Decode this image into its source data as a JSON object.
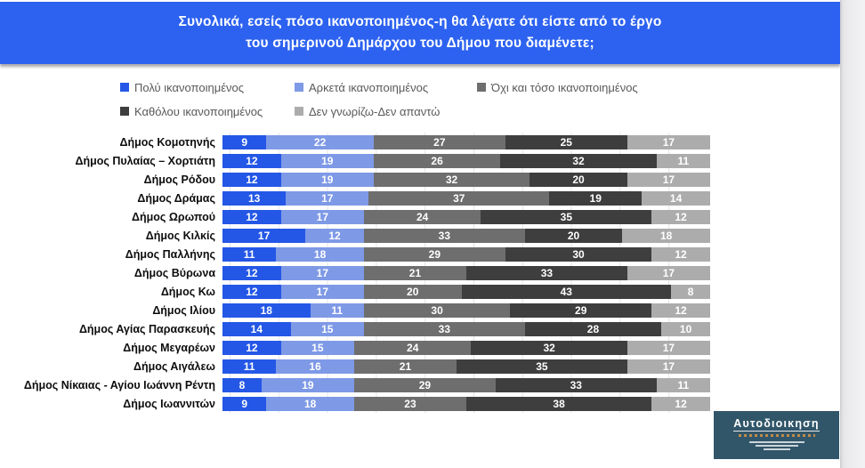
{
  "title": {
    "line1": "Συνολικά, εσείς πόσο ικανοποιημένος-η θα λέγατε ότι είστε από το έργο",
    "line2": "του σημερινού Δημάρχου του Δήμου που διαμένετε;"
  },
  "colors": {
    "banner_blue": "#2d62f0",
    "series": [
      "#2457e6",
      "#7e99e6",
      "#6e6e6e",
      "#3e3e3e",
      "#acacac"
    ],
    "logo_bg": "#31566a"
  },
  "chart_data": {
    "type": "bar",
    "stacked": true,
    "orientation": "horizontal",
    "xlim": [
      0,
      100
    ],
    "grid": "faint vertical lines every 10",
    "legend_position": "top",
    "categories": [
      "Δήμος Κομοτηνής",
      "Δήμος Πυλαίας – Χορτιάτη",
      "Δήμος Ρόδου",
      "Δήμος Δράμας",
      "Δήμος Ωρωπού",
      "Δήμος Κιλκίς",
      "Δήμος Παλλήνης",
      "Δήμος Βύρωνα",
      "Δήμος Κω",
      "Δήμος Ιλίου",
      "Δήμος Αγίας Παρασκευής",
      "Δήμος Μεγαρέων",
      "Δήμος Αιγάλεω",
      "Δήμος Νίκαιας - Αγίου Ιωάννη Ρέντη",
      "Δήμος Ιωαννιτών"
    ],
    "series": [
      {
        "name": "Πολύ ικανοποιημένος",
        "color": "#2457e6",
        "values": [
          9,
          12,
          12,
          13,
          12,
          17,
          11,
          12,
          12,
          18,
          14,
          12,
          11,
          8,
          9
        ]
      },
      {
        "name": "Αρκετά ικανοποιημένος",
        "color": "#7e99e6",
        "values": [
          22,
          19,
          19,
          17,
          17,
          12,
          18,
          17,
          17,
          11,
          15,
          15,
          16,
          19,
          18
        ]
      },
      {
        "name": "Όχι και τόσο ικανοποιημένος",
        "color": "#6e6e6e",
        "values": [
          27,
          26,
          32,
          37,
          24,
          33,
          29,
          21,
          20,
          30,
          33,
          24,
          21,
          29,
          23
        ]
      },
      {
        "name": "Καθόλου ικανοποιημένος",
        "color": "#3e3e3e",
        "values": [
          25,
          32,
          20,
          19,
          35,
          20,
          30,
          33,
          43,
          29,
          28,
          32,
          35,
          33,
          38
        ]
      },
      {
        "name": "Δεν γνωρίζω-Δεν απαντώ",
        "color": "#acacac",
        "values": [
          17,
          11,
          17,
          14,
          12,
          18,
          12,
          17,
          8,
          12,
          10,
          17,
          17,
          11,
          12
        ]
      }
    ]
  },
  "logo": {
    "text": "Αυτοδιοικηση"
  }
}
